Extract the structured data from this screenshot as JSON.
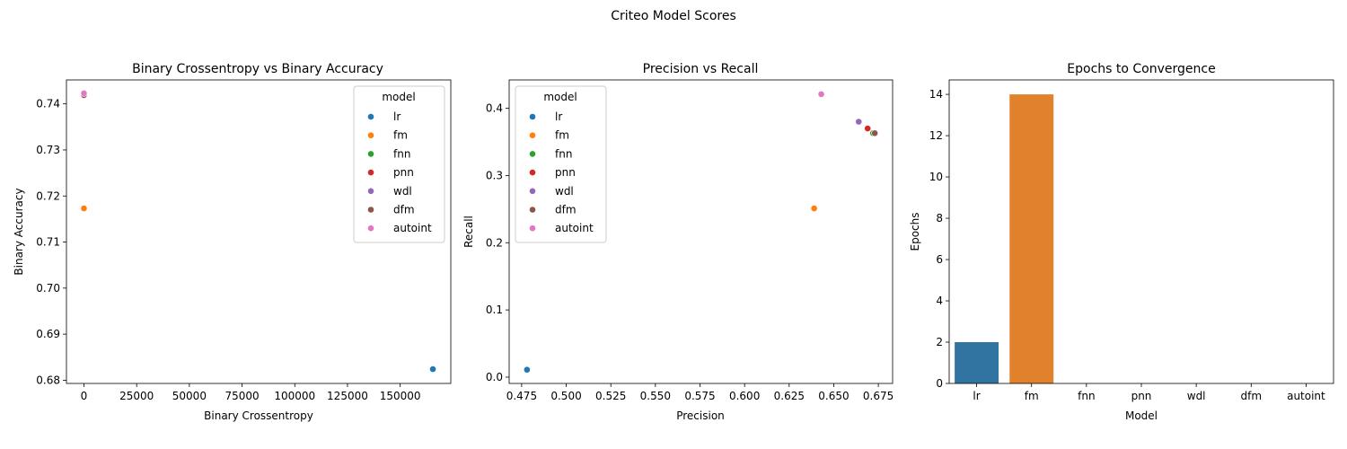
{
  "suptitle": "Criteo Model Scores",
  "colors": {
    "lr": "#1f77b4",
    "fm": "#ff7f0e",
    "fnn": "#2ca02c",
    "pnn": "#d62728",
    "wdl": "#9467bd",
    "dfm": "#8c564b",
    "autoint": "#e377c2",
    "bar_lr": "#3274a1",
    "bar_fm": "#e1812c"
  },
  "chart_data": [
    {
      "type": "scatter",
      "title": "Binary Crossentropy vs Binary Accuracy",
      "xlabel": "Binary Crossentropy",
      "ylabel": "Binary Accuracy",
      "xlim": [
        -8300,
        174000
      ],
      "ylim": [
        0.6793,
        0.7452
      ],
      "xticks": [
        0,
        25000,
        50000,
        75000,
        100000,
        125000,
        150000
      ],
      "yticks": [
        0.68,
        0.69,
        0.7,
        0.71,
        0.72,
        0.73,
        0.74
      ],
      "ytick_labels": [
        "0.68",
        "0.69",
        "0.70",
        "0.71",
        "0.72",
        "0.73",
        "0.74"
      ],
      "legend_title": "model",
      "legend_position": "upper right",
      "series": [
        {
          "name": "lr",
          "x": 165500,
          "y": 0.6824
        },
        {
          "name": "fm",
          "x": 0,
          "y": 0.7173
        },
        {
          "name": "fnn",
          "x": 0,
          "y": 0.7418
        },
        {
          "name": "pnn",
          "x": 0,
          "y": 0.742
        },
        {
          "name": "wdl",
          "x": 0,
          "y": 0.7422
        },
        {
          "name": "dfm",
          "x": 0,
          "y": 0.7419
        },
        {
          "name": "autoint",
          "x": 0,
          "y": 0.7423
        }
      ]
    },
    {
      "type": "scatter",
      "title": "Precision vs Recall",
      "xlabel": "Precision",
      "ylabel": "Recall",
      "xlim": [
        0.468,
        0.683
      ],
      "ylim": [
        -0.0094,
        0.4422
      ],
      "xticks": [
        0.475,
        0.5,
        0.525,
        0.55,
        0.575,
        0.6,
        0.625,
        0.65,
        0.675
      ],
      "xtick_labels": [
        "0.475",
        "0.500",
        "0.525",
        "0.550",
        "0.575",
        "0.600",
        "0.625",
        "0.650",
        "0.675"
      ],
      "yticks": [
        0.0,
        0.1,
        0.2,
        0.3,
        0.4
      ],
      "ytick_labels": [
        "0.0",
        "0.1",
        "0.2",
        "0.3",
        "0.4"
      ],
      "legend_title": "model",
      "legend_position": "upper left",
      "series": [
        {
          "name": "lr",
          "x": 0.478,
          "y": 0.011
        },
        {
          "name": "fm",
          "x": 0.639,
          "y": 0.251
        },
        {
          "name": "fnn",
          "x": 0.672,
          "y": 0.363
        },
        {
          "name": "pnn",
          "x": 0.669,
          "y": 0.37
        },
        {
          "name": "wdl",
          "x": 0.664,
          "y": 0.38
        },
        {
          "name": "dfm",
          "x": 0.673,
          "y": 0.363
        },
        {
          "name": "autoint",
          "x": 0.643,
          "y": 0.421
        }
      ]
    },
    {
      "type": "bar",
      "title": "Epochs to Convergence",
      "xlabel": "Model",
      "ylabel": "Epochs",
      "ylim": [
        0,
        14.7
      ],
      "yticks": [
        0,
        2,
        4,
        6,
        8,
        10,
        12,
        14
      ],
      "categories": [
        "lr",
        "fm",
        "fnn",
        "pnn",
        "wdl",
        "dfm",
        "autoint"
      ],
      "values": [
        2,
        14,
        0,
        0,
        0,
        0,
        0
      ]
    }
  ]
}
